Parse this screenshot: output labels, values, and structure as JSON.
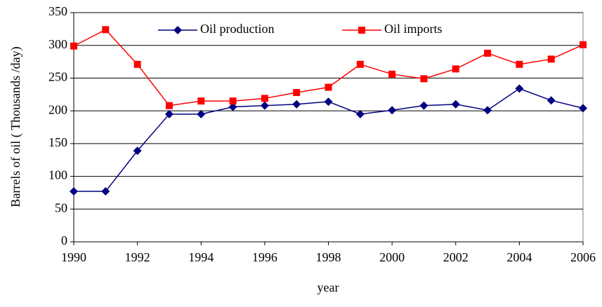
{
  "chart_data": {
    "type": "line",
    "y_label": "Barrels of oil ( Thousands /day)",
    "x_label": "year",
    "x": [
      1990,
      1991,
      1992,
      1993,
      1994,
      1995,
      1996,
      1997,
      1998,
      1999,
      2000,
      2001,
      2002,
      2003,
      2004,
      2005,
      2006
    ],
    "series": [
      {
        "name": "Oil production",
        "color": "#000080",
        "marker": "diamond",
        "values": [
          77,
          77,
          139,
          195,
          195,
          206,
          208,
          210,
          214,
          195,
          201,
          208,
          210,
          201,
          234,
          216,
          204
        ]
      },
      {
        "name": "Oil imports",
        "color": "#ff0000",
        "marker": "square",
        "values": [
          299,
          324,
          271,
          208,
          215,
          215,
          219,
          228,
          236,
          271,
          256,
          249,
          264,
          288,
          271,
          279,
          301
        ]
      }
    ],
    "xlim": [
      1990,
      2006
    ],
    "xticks": [
      1990,
      1992,
      1994,
      1996,
      1998,
      2000,
      2002,
      2004,
      2006
    ],
    "ylim": [
      0,
      350
    ],
    "yticks": [
      0,
      50,
      100,
      150,
      200,
      250,
      300,
      350
    ],
    "grid": true
  }
}
